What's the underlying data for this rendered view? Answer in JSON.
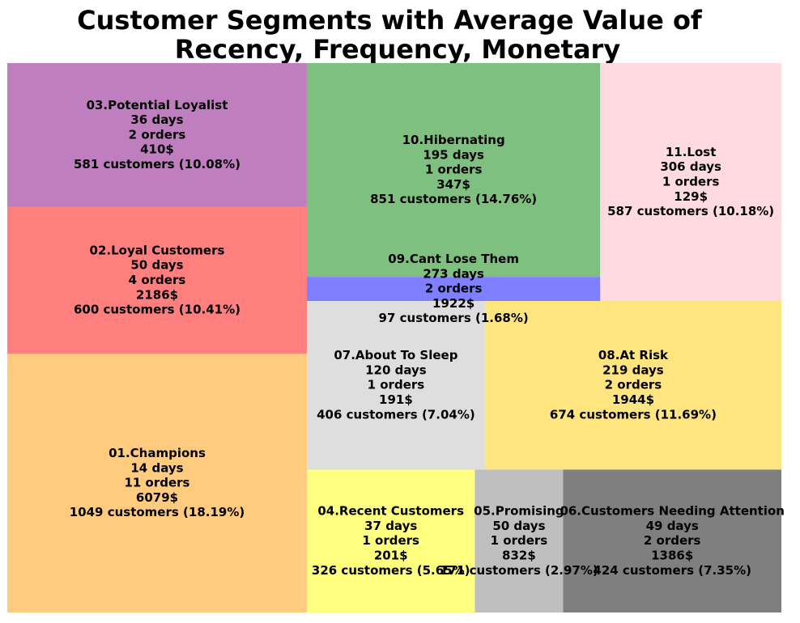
{
  "chart_data": {
    "type": "treemap",
    "title_lines": [
      "Customer Segments with Average Value of",
      "Recency, Frequency, Monetary"
    ],
    "segments": [
      {
        "label": "03.Potential Loyalist",
        "recency": "36 days",
        "frequency": "2 orders",
        "monetary": "410$",
        "customers": "581 customers (10.08%)",
        "count": 581,
        "color": "#bf7fbf"
      },
      {
        "label": "02.Loyal Customers",
        "recency": "50 days",
        "frequency": "4 orders",
        "monetary": "2186$",
        "customers": "600 customers (10.41%)",
        "count": 600,
        "color": "#ff7f7f"
      },
      {
        "label": "01.Champions",
        "recency": "14 days",
        "frequency": "11 orders",
        "monetary": "6079$",
        "customers": "1049 customers (18.19%)",
        "count": 1049,
        "color": "#ffcc7f"
      },
      {
        "label": "10.Hibernating",
        "recency": "195 days",
        "frequency": "1 orders",
        "monetary": "347$",
        "customers": "851 customers (14.76%)",
        "count": 851,
        "color": "#7fbf7f"
      },
      {
        "label": "09.Cant Lose Them",
        "recency": "273 days",
        "frequency": "2 orders",
        "monetary": "1922$",
        "customers": "97 customers (1.68%)",
        "count": 97,
        "color": "#7f7fff"
      },
      {
        "label": "11.Lost",
        "recency": "306 days",
        "frequency": "1 orders",
        "monetary": "129$",
        "customers": "587 customers (10.18%)",
        "count": 587,
        "color": "#ffdbe1"
      },
      {
        "label": "07.About To Sleep",
        "recency": "120 days",
        "frequency": "1 orders",
        "monetary": "191$",
        "customers": "406 customers (7.04%)",
        "count": 406,
        "color": "#dedede"
      },
      {
        "label": "08.At Risk",
        "recency": "219 days",
        "frequency": "2 orders",
        "monetary": "1944$",
        "customers": "674 customers (11.69%)",
        "count": 674,
        "color": "#ffe57f"
      },
      {
        "label": "04.Recent Customers",
        "recency": "37 days",
        "frequency": "1 orders",
        "monetary": "201$",
        "customers": "326 customers (5.65%)",
        "count": 326,
        "color": "#ffff7f"
      },
      {
        "label": "05.Promising",
        "recency": "50 days",
        "frequency": "1 orders",
        "monetary": "832$",
        "customers": "171 customers (2.97%)",
        "count": 171,
        "color": "#bfbfbf"
      },
      {
        "label": "06.Customers Needing Attention",
        "recency": "49 days",
        "frequency": "2 orders",
        "monetary": "1386$",
        "customers": "424 customers (7.35%)",
        "count": 424,
        "color": "#7f7f7f"
      }
    ]
  }
}
